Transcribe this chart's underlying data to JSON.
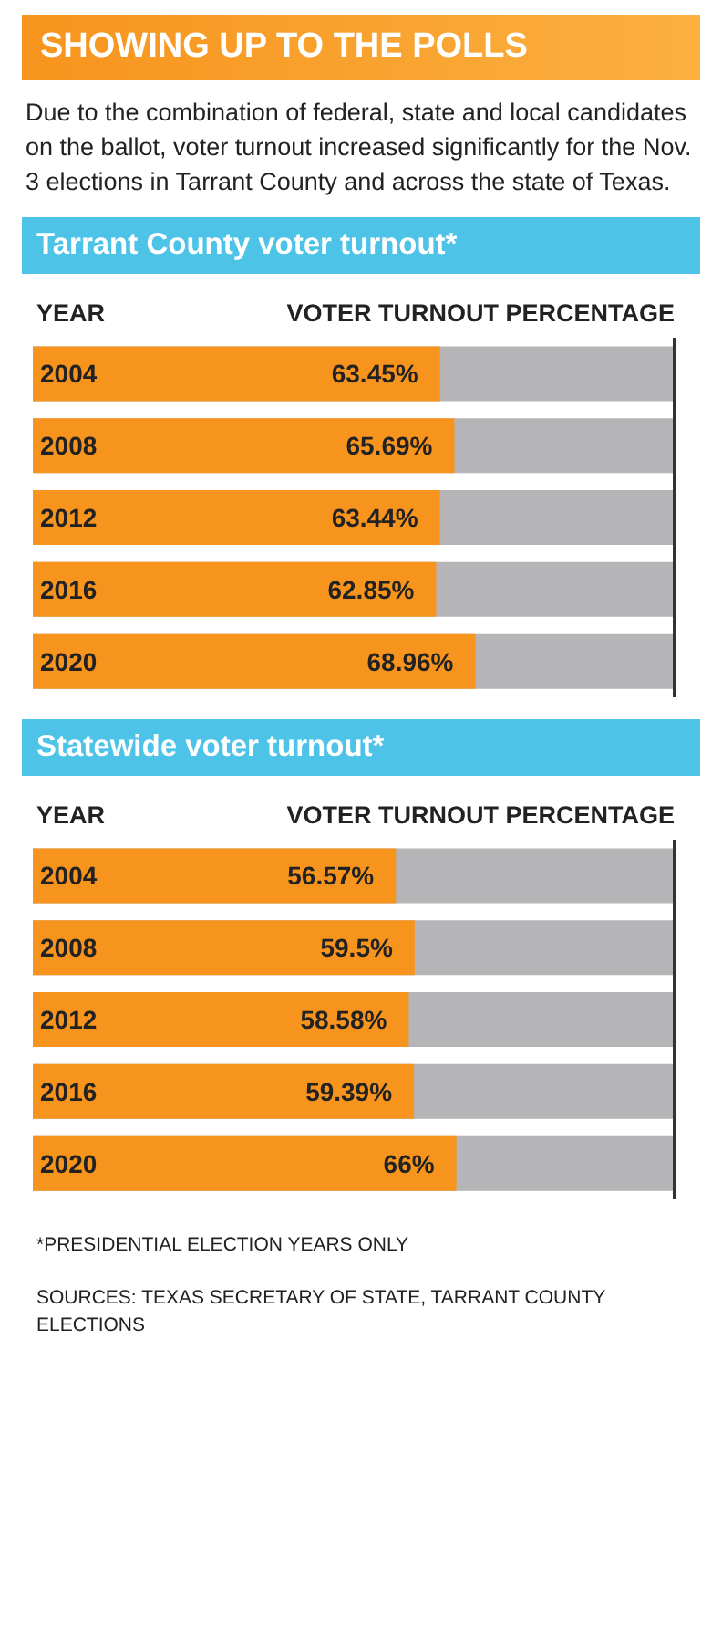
{
  "chart_data": [
    {
      "type": "other",
      "title": "SHOWING UP TO THE POLLS",
      "subtitle": "Due to the combination of federal, state and local candidates on the ballot, voter turnout increased significantly for the Nov. 3 elections in Tarrant County and across the state of Texas."
    },
    {
      "type": "bar",
      "orientation": "horizontal",
      "title": "Tarrant County voter turnout*",
      "ylabel": "YEAR",
      "xlabel": "VOTER TURNOUT PERCENTAGE",
      "categories": [
        "2004",
        "2008",
        "2012",
        "2016",
        "2020"
      ],
      "values": [
        63.45,
        65.69,
        63.44,
        62.85,
        68.96
      ],
      "value_labels": [
        "63.45%",
        "65.69%",
        "63.44%",
        "62.85%",
        "68.96%"
      ],
      "color": "#f7941d",
      "xlim": [
        0,
        100
      ],
      "tick_labels": "y",
      "ref_lines": [
        {
          "axis": "x",
          "value": 100,
          "color": "#333333"
        }
      ]
    },
    {
      "type": "bar",
      "orientation": "horizontal",
      "title": "Statewide voter turnout*",
      "ylabel": "YEAR",
      "xlabel": "VOTER TURNOUT PERCENTAGE",
      "categories": [
        "2004",
        "2008",
        "2012",
        "2016",
        "2020"
      ],
      "values": [
        56.57,
        59.5,
        58.58,
        59.39,
        66
      ],
      "value_labels": [
        "56.57%",
        "59.5%",
        "58.58%",
        "59.39%",
        "66%"
      ],
      "color": "#f7941d",
      "xlim": [
        0,
        100
      ],
      "tick_labels": "y",
      "ref_lines": [
        {
          "axis": "x",
          "value": 100,
          "color": "#333333"
        }
      ],
      "annotations": [
        "*PRESIDENTIAL ELECTION YEARS ONLY",
        "SOURCES: TEXAS SECRETARY OF STATE, TARRANT COUNTY ELECTIONS"
      ]
    }
  ]
}
